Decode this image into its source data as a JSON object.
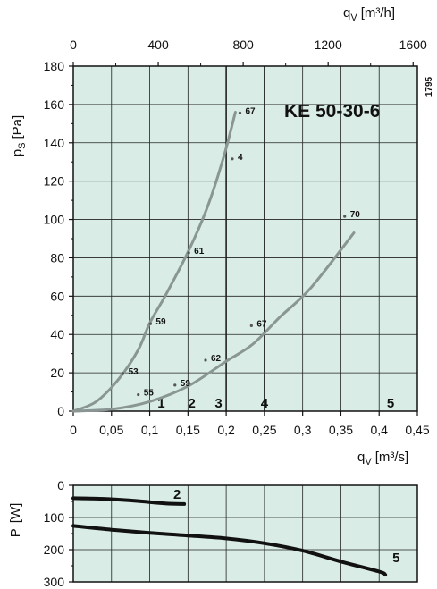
{
  "figure_id": "1795",
  "chart_data": [
    {
      "type": "line",
      "model_label": "KE  50-30-6",
      "x_bottom": {
        "label_main": "q",
        "label_sub": "V",
        "label_unit": "[m³/s]",
        "range": [
          0,
          0.45
        ],
        "ticks": [
          "0",
          "0,05",
          "0,1",
          "0,15",
          "0,2",
          "0,25",
          "0,3",
          "0,35",
          "0,4",
          "0,45"
        ]
      },
      "x_top": {
        "label_main": "q",
        "label_sub": "V",
        "label_unit": "[m³/h]",
        "range": [
          0,
          1620
        ],
        "ticks": [
          "0",
          "400",
          "800",
          "1200",
          "1600"
        ],
        "tick_values": [
          0,
          400,
          800,
          1200,
          1600
        ]
      },
      "y": {
        "label_main": "p",
        "label_sub": "S",
        "label_unit": "[Pa]",
        "range": [
          0,
          180
        ],
        "ticks": [
          "0",
          "20",
          "40",
          "60",
          "80",
          "100",
          "120",
          "140",
          "160",
          "180"
        ]
      },
      "grid": true,
      "zones": [
        {
          "label": "1",
          "x": 0.115
        },
        {
          "label": "2",
          "x": 0.155
        },
        {
          "label": "3",
          "x": 0.19
        },
        {
          "label": "4",
          "x": 0.25
        },
        {
          "label": "5",
          "x": 0.415
        }
      ],
      "series": [
        {
          "name": "curve-2",
          "x": [
            0.0,
            0.03,
            0.06,
            0.085,
            0.1,
            0.12,
            0.15,
            0.175,
            0.197,
            0.212
          ],
          "y": [
            0,
            5,
            17,
            32,
            46,
            60,
            83,
            106,
            133,
            156
          ],
          "labels": [
            {
              "text": "53",
              "x": 0.072,
              "y": 21
            },
            {
              "text": "55",
              "x": 0.092,
              "y": 10
            },
            {
              "text": "59",
              "x": 0.108,
              "y": 47
            },
            {
              "text": "61",
              "x": 0.158,
              "y": 84
            },
            {
              "text": "4",
              "x": 0.215,
              "y": 133
            },
            {
              "text": "67",
              "x": 0.225,
              "y": 157
            }
          ]
        },
        {
          "name": "curve-5",
          "x": [
            0.0,
            0.05,
            0.1,
            0.15,
            0.2,
            0.235,
            0.27,
            0.31,
            0.367
          ],
          "y": [
            0,
            1,
            5,
            13,
            26,
            35,
            49,
            64,
            93
          ],
          "labels": [
            {
              "text": "59",
              "x": 0.14,
              "y": 15
            },
            {
              "text": "62",
              "x": 0.18,
              "y": 28
            },
            {
              "text": "67",
              "x": 0.24,
              "y": 46
            },
            {
              "text": "70",
              "x": 0.362,
              "y": 103
            }
          ]
        }
      ]
    },
    {
      "type": "line",
      "x_range": [
        0,
        0.45
      ],
      "y": {
        "label_main": "P",
        "label_unit": "[W]",
        "range": [
          0,
          300
        ],
        "inverted": true,
        "ticks": [
          "0",
          "100",
          "200",
          "300"
        ],
        "tick_values": [
          0,
          100,
          200,
          300
        ]
      },
      "grid": true,
      "series": [
        {
          "name": "2",
          "x": [
            0.0,
            0.04,
            0.08,
            0.12,
            0.145
          ],
          "y": [
            40,
            42,
            48,
            56,
            58
          ]
        },
        {
          "name": "5",
          "x": [
            0.0,
            0.05,
            0.1,
            0.15,
            0.2,
            0.25,
            0.3,
            0.35,
            0.4,
            0.408
          ],
          "y": [
            126,
            138,
            148,
            156,
            165,
            180,
            203,
            237,
            268,
            278
          ]
        }
      ]
    }
  ]
}
